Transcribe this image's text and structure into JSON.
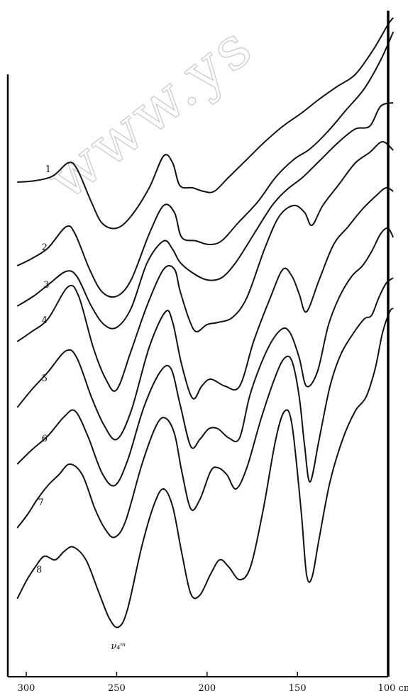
{
  "chart_data": {
    "type": "line",
    "title": "",
    "xlabel": "",
    "ylabel": "",
    "x_unit": "cm⁻¹",
    "x_axis_reversed": true,
    "xlim": [
      305,
      95
    ],
    "x_ticks": [
      300,
      250,
      200,
      150,
      100
    ],
    "x_tick_labels": [
      "300",
      "250",
      "200",
      "150",
      "100 cm⁻¹"
    ],
    "y_axis": "relative transmittance, curves vertically offset, no numeric scale",
    "annotation": {
      "text": "ν₄ᵐ",
      "x": 250
    },
    "watermark": "www.ys",
    "series": [
      {
        "name": "1",
        "points": [
          [
            305,
            257
          ],
          [
            295,
            255
          ],
          [
            285,
            248
          ],
          [
            277,
            230
          ],
          [
            272,
            238
          ],
          [
            264,
            285
          ],
          [
            258,
            315
          ],
          [
            250,
            322
          ],
          [
            242,
            305
          ],
          [
            232,
            265
          ],
          [
            224,
            220
          ],
          [
            219,
            230
          ],
          [
            215,
            262
          ],
          [
            208,
            265
          ],
          [
            202,
            270
          ],
          [
            196,
            270
          ],
          [
            188,
            250
          ],
          [
            178,
            225
          ],
          [
            168,
            200
          ],
          [
            158,
            178
          ],
          [
            148,
            160
          ],
          [
            138,
            140
          ],
          [
            128,
            122
          ],
          [
            118,
            105
          ],
          [
            108,
            70
          ],
          [
            100,
            35
          ],
          [
            97,
            25
          ]
        ]
      },
      {
        "name": "2",
        "points": [
          [
            305,
            375
          ],
          [
            297,
            365
          ],
          [
            288,
            350
          ],
          [
            278,
            320
          ],
          [
            273,
            330
          ],
          [
            265,
            380
          ],
          [
            258,
            412
          ],
          [
            250,
            418
          ],
          [
            242,
            395
          ],
          [
            232,
            330
          ],
          [
            224,
            290
          ],
          [
            218,
            300
          ],
          [
            214,
            335
          ],
          [
            206,
            340
          ],
          [
            199,
            345
          ],
          [
            192,
            340
          ],
          [
            183,
            315
          ],
          [
            172,
            285
          ],
          [
            162,
            250
          ],
          [
            152,
            225
          ],
          [
            143,
            210
          ],
          [
            133,
            185
          ],
          [
            123,
            155
          ],
          [
            113,
            125
          ],
          [
            104,
            85
          ],
          [
            97,
            45
          ]
        ]
      },
      {
        "name": "3",
        "points": [
          [
            305,
            432
          ],
          [
            296,
            418
          ],
          [
            287,
            400
          ],
          [
            278,
            383
          ],
          [
            272,
            390
          ],
          [
            264,
            432
          ],
          [
            257,
            458
          ],
          [
            250,
            462
          ],
          [
            242,
            435
          ],
          [
            233,
            370
          ],
          [
            224,
            340
          ],
          [
            219,
            352
          ],
          [
            215,
            370
          ],
          [
            208,
            385
          ],
          [
            200,
            395
          ],
          [
            192,
            392
          ],
          [
            184,
            370
          ],
          [
            174,
            330
          ],
          [
            164,
            290
          ],
          [
            156,
            268
          ],
          [
            147,
            250
          ],
          [
            137,
            225
          ],
          [
            127,
            200
          ],
          [
            118,
            182
          ],
          [
            110,
            178
          ],
          [
            104,
            150
          ],
          [
            97,
            145
          ]
        ]
      },
      {
        "name": "4",
        "points": [
          [
            305,
            482
          ],
          [
            297,
            468
          ],
          [
            288,
            450
          ],
          [
            277,
            405
          ],
          [
            271,
            418
          ],
          [
            263,
            490
          ],
          [
            256,
            535
          ],
          [
            250,
            550
          ],
          [
            242,
            495
          ],
          [
            233,
            430
          ],
          [
            224,
            380
          ],
          [
            218,
            380
          ],
          [
            215,
            410
          ],
          [
            210,
            450
          ],
          [
            206,
            468
          ],
          [
            200,
            458
          ],
          [
            194,
            455
          ],
          [
            186,
            448
          ],
          [
            178,
            420
          ],
          [
            168,
            350
          ],
          [
            160,
            305
          ],
          [
            152,
            290
          ],
          [
            146,
            300
          ],
          [
            142,
            318
          ],
          [
            136,
            290
          ],
          [
            127,
            260
          ],
          [
            118,
            230
          ],
          [
            110,
            215
          ],
          [
            103,
            200
          ],
          [
            97,
            212
          ]
        ]
      },
      {
        "name": "5",
        "points": [
          [
            305,
            575
          ],
          [
            297,
            550
          ],
          [
            288,
            525
          ],
          [
            278,
            495
          ],
          [
            272,
            505
          ],
          [
            264,
            560
          ],
          [
            257,
            600
          ],
          [
            250,
            620
          ],
          [
            242,
            580
          ],
          [
            232,
            490
          ],
          [
            223,
            440
          ],
          [
            219,
            455
          ],
          [
            214,
            515
          ],
          [
            208,
            562
          ],
          [
            203,
            545
          ],
          [
            198,
            535
          ],
          [
            190,
            545
          ],
          [
            182,
            545
          ],
          [
            174,
            480
          ],
          [
            165,
            420
          ],
          [
            158,
            380
          ],
          [
            153,
            390
          ],
          [
            149,
            415
          ],
          [
            145,
            440
          ],
          [
            138,
            395
          ],
          [
            130,
            345
          ],
          [
            122,
            320
          ],
          [
            114,
            295
          ],
          [
            106,
            275
          ],
          [
            101,
            265
          ],
          [
            97,
            270
          ]
        ]
      },
      {
        "name": "6",
        "points": [
          [
            305,
            655
          ],
          [
            297,
            635
          ],
          [
            288,
            615
          ],
          [
            279,
            588
          ],
          [
            273,
            580
          ],
          [
            266,
            615
          ],
          [
            258,
            668
          ],
          [
            251,
            685
          ],
          [
            244,
            650
          ],
          [
            235,
            575
          ],
          [
            226,
            525
          ],
          [
            220,
            520
          ],
          [
            215,
            570
          ],
          [
            209,
            630
          ],
          [
            204,
            620
          ],
          [
            199,
            605
          ],
          [
            194,
            605
          ],
          [
            188,
            618
          ],
          [
            182,
            618
          ],
          [
            176,
            555
          ],
          [
            167,
            495
          ],
          [
            159,
            465
          ],
          [
            154,
            470
          ],
          [
            149,
            505
          ],
          [
            145,
            545
          ],
          [
            139,
            525
          ],
          [
            133,
            460
          ],
          [
            127,
            420
          ],
          [
            120,
            390
          ],
          [
            114,
            375
          ],
          [
            109,
            355
          ],
          [
            104,
            330
          ],
          [
            100,
            322
          ],
          [
            97,
            335
          ]
        ]
      },
      {
        "name": "7",
        "points": [
          [
            305,
            745
          ],
          [
            299,
            725
          ],
          [
            294,
            705
          ],
          [
            288,
            685
          ],
          [
            282,
            670
          ],
          [
            276,
            655
          ],
          [
            269,
            670
          ],
          [
            262,
            718
          ],
          [
            256,
            748
          ],
          [
            251,
            758
          ],
          [
            245,
            735
          ],
          [
            236,
            655
          ],
          [
            228,
            600
          ],
          [
            223,
            590
          ],
          [
            218,
            612
          ],
          [
            214,
            665
          ],
          [
            209,
            718
          ],
          [
            204,
            705
          ],
          [
            198,
            665
          ],
          [
            194,
            660
          ],
          [
            189,
            670
          ],
          [
            184,
            690
          ],
          [
            178,
            660
          ],
          [
            170,
            590
          ],
          [
            162,
            530
          ],
          [
            157,
            505
          ],
          [
            153,
            510
          ],
          [
            149,
            560
          ],
          [
            146,
            630
          ],
          [
            143,
            680
          ],
          [
            138,
            620
          ],
          [
            132,
            545
          ],
          [
            126,
            500
          ],
          [
            119,
            470
          ],
          [
            113,
            450
          ],
          [
            109,
            445
          ],
          [
            105,
            420
          ],
          [
            101,
            400
          ],
          [
            97,
            392
          ]
        ]
      },
      {
        "name": "8",
        "points": [
          [
            305,
            845
          ],
          [
            300,
            820
          ],
          [
            295,
            800
          ],
          [
            290,
            785
          ],
          [
            284,
            790
          ],
          [
            279,
            778
          ],
          [
            274,
            772
          ],
          [
            267,
            790
          ],
          [
            260,
            835
          ],
          [
            254,
            873
          ],
          [
            249,
            885
          ],
          [
            244,
            860
          ],
          [
            236,
            770
          ],
          [
            229,
            710
          ],
          [
            224,
            690
          ],
          [
            219,
            715
          ],
          [
            214,
            780
          ],
          [
            209,
            838
          ],
          [
            204,
            840
          ],
          [
            198,
            810
          ],
          [
            193,
            790
          ],
          [
            188,
            800
          ],
          [
            182,
            818
          ],
          [
            176,
            800
          ],
          [
            169,
            720
          ],
          [
            162,
            620
          ],
          [
            157,
            580
          ],
          [
            153,
            600
          ],
          [
            148,
            720
          ],
          [
            145,
            810
          ],
          [
            142,
            815
          ],
          [
            138,
            760
          ],
          [
            132,
            680
          ],
          [
            125,
            620
          ],
          [
            118,
            580
          ],
          [
            112,
            560
          ],
          [
            107,
            520
          ],
          [
            103,
            470
          ],
          [
            99,
            440
          ],
          [
            97,
            435
          ]
        ]
      }
    ],
    "grid": false,
    "legend": "curves numbered 1–8 at left"
  }
}
